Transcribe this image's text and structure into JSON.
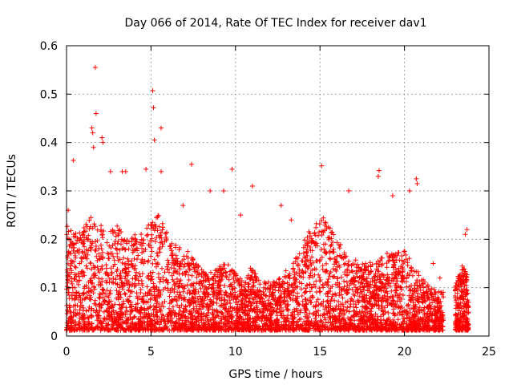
{
  "chart_data": {
    "type": "scatter",
    "title": "Day 066 of 2014, Rate Of TEC Index for receiver dav1",
    "xlabel": "GPS time / hours",
    "ylabel": "ROTI / TECUs",
    "xlim": [
      0,
      25
    ],
    "ylim": [
      0,
      0.6
    ],
    "xticks": [
      "0",
      "5",
      "10",
      "15",
      "20",
      "25"
    ],
    "yticks": [
      "0",
      "0.1",
      "0.2",
      "0.3",
      "0.4",
      "0.5",
      "0.6"
    ],
    "grid": true,
    "marker": "plus",
    "color": "#ff0000",
    "coverage": [
      [
        0.0,
        22.3
      ],
      [
        23.0,
        23.8
      ]
    ],
    "series": [
      {
        "envelope": [
          [
            0.0,
            0.22
          ],
          [
            0.5,
            0.2
          ],
          [
            1.0,
            0.21
          ],
          [
            1.5,
            0.24
          ],
          [
            2.0,
            0.22
          ],
          [
            2.5,
            0.2
          ],
          [
            3.0,
            0.22
          ],
          [
            3.5,
            0.19
          ],
          [
            4.0,
            0.2
          ],
          [
            4.5,
            0.2
          ],
          [
            5.0,
            0.23
          ],
          [
            5.5,
            0.24
          ],
          [
            6.0,
            0.2
          ],
          [
            6.5,
            0.18
          ],
          [
            7.0,
            0.17
          ],
          [
            7.5,
            0.15
          ],
          [
            8.0,
            0.13
          ],
          [
            8.5,
            0.12
          ],
          [
            9.0,
            0.13
          ],
          [
            9.5,
            0.15
          ],
          [
            10.0,
            0.12
          ],
          [
            10.5,
            0.1
          ],
          [
            11.0,
            0.14
          ],
          [
            11.5,
            0.1
          ],
          [
            12.0,
            0.1
          ],
          [
            12.5,
            0.11
          ],
          [
            13.0,
            0.13
          ],
          [
            13.5,
            0.16
          ],
          [
            14.0,
            0.19
          ],
          [
            14.5,
            0.21
          ],
          [
            15.0,
            0.24
          ],
          [
            15.5,
            0.22
          ],
          [
            16.0,
            0.19
          ],
          [
            16.5,
            0.17
          ],
          [
            17.0,
            0.15
          ],
          [
            17.5,
            0.14
          ],
          [
            18.0,
            0.14
          ],
          [
            18.5,
            0.15
          ],
          [
            19.0,
            0.16
          ],
          [
            19.5,
            0.17
          ],
          [
            20.0,
            0.17
          ],
          [
            20.5,
            0.14
          ],
          [
            21.0,
            0.11
          ],
          [
            21.5,
            0.09
          ],
          [
            22.0,
            0.08
          ],
          [
            23.0,
            0.1
          ],
          [
            23.5,
            0.14
          ],
          [
            23.8,
            0.12
          ]
        ],
        "outliers": [
          [
            0.4,
            0.363
          ],
          [
            1.5,
            0.43
          ],
          [
            1.55,
            0.42
          ],
          [
            1.6,
            0.39
          ],
          [
            1.7,
            0.555
          ],
          [
            1.75,
            0.46
          ],
          [
            2.1,
            0.41
          ],
          [
            2.15,
            0.4
          ],
          [
            5.1,
            0.507
          ],
          [
            5.15,
            0.472
          ],
          [
            5.2,
            0.405
          ],
          [
            5.6,
            0.43
          ],
          [
            5.6,
            0.34
          ],
          [
            7.4,
            0.355
          ],
          [
            3.5,
            0.34
          ],
          [
            4.7,
            0.345
          ],
          [
            9.8,
            0.345
          ],
          [
            15.1,
            0.352
          ],
          [
            18.5,
            0.342
          ],
          [
            18.45,
            0.33
          ],
          [
            20.7,
            0.325
          ],
          [
            20.75,
            0.315
          ],
          [
            20.3,
            0.3
          ],
          [
            11.0,
            0.31
          ],
          [
            16.7,
            0.3
          ],
          [
            12.7,
            0.27
          ],
          [
            13.3,
            0.24
          ],
          [
            9.3,
            0.3
          ],
          [
            6.9,
            0.27
          ],
          [
            2.6,
            0.34
          ],
          [
            3.3,
            0.34
          ],
          [
            8.5,
            0.3
          ],
          [
            10.3,
            0.25
          ],
          [
            19.3,
            0.29
          ],
          [
            21.7,
            0.15
          ],
          [
            23.7,
            0.22
          ],
          [
            23.6,
            0.21
          ],
          [
            22.1,
            0.12
          ],
          [
            0.1,
            0.26
          ]
        ]
      }
    ]
  }
}
